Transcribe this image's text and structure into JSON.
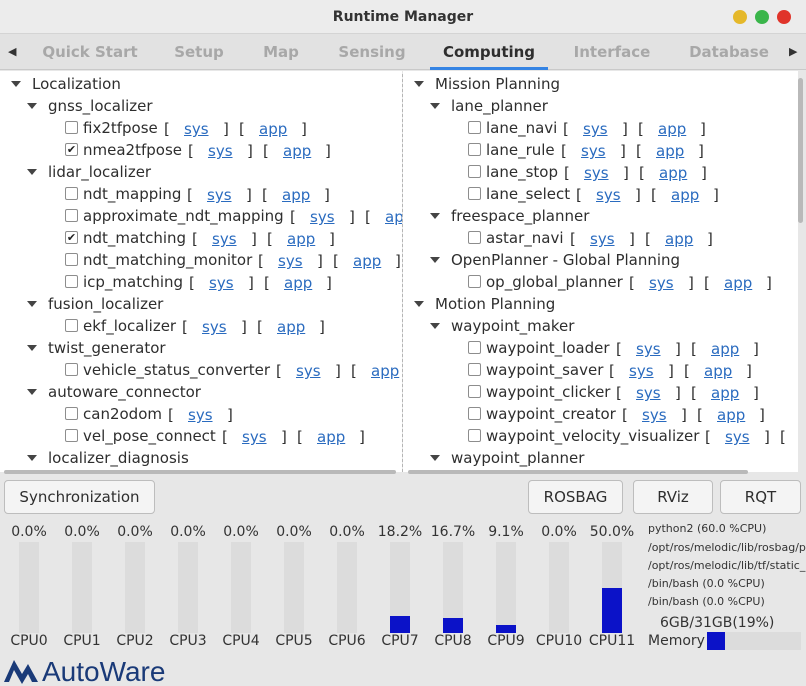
{
  "window": {
    "title": "Runtime Manager",
    "controls": {
      "minimize": "#e5b82a",
      "maximize": "#3ab54a",
      "close": "#e0342a"
    }
  },
  "tabs": [
    "Quick Start",
    "Setup",
    "Map",
    "Sensing",
    "Computing",
    "Interface",
    "Database"
  ],
  "active_tab": "Computing",
  "sys_label": "sys",
  "app_label": "app",
  "bracket_open": "[",
  "bracket_close": "]",
  "left_tree": [
    {
      "label": "Localization",
      "level": 0,
      "type": "group"
    },
    {
      "label": "gnss_localizer",
      "level": 1,
      "type": "group"
    },
    {
      "label": "fix2tfpose",
      "level": 2,
      "type": "node",
      "checked": false,
      "links": [
        "sys",
        "app"
      ]
    },
    {
      "label": "nmea2tfpose",
      "level": 2,
      "type": "node",
      "checked": true,
      "links": [
        "sys",
        "app"
      ]
    },
    {
      "label": "lidar_localizer",
      "level": 1,
      "type": "group"
    },
    {
      "label": "ndt_mapping",
      "level": 2,
      "type": "node",
      "checked": false,
      "links": [
        "sys",
        "app"
      ]
    },
    {
      "label": "approximate_ndt_mapping",
      "level": 2,
      "type": "node",
      "checked": false,
      "links": [
        "sys",
        "app"
      ]
    },
    {
      "label": "ndt_matching",
      "level": 2,
      "type": "node",
      "checked": true,
      "links": [
        "sys",
        "app"
      ]
    },
    {
      "label": "ndt_matching_monitor",
      "level": 2,
      "type": "node",
      "checked": false,
      "links": [
        "sys",
        "app"
      ]
    },
    {
      "label": "icp_matching",
      "level": 2,
      "type": "node",
      "checked": false,
      "links": [
        "sys",
        "app"
      ]
    },
    {
      "label": "fusion_localizer",
      "level": 1,
      "type": "group"
    },
    {
      "label": "ekf_localizer",
      "level": 2,
      "type": "node",
      "checked": false,
      "links": [
        "sys",
        "app"
      ]
    },
    {
      "label": "twist_generator",
      "level": 1,
      "type": "group"
    },
    {
      "label": "vehicle_status_converter",
      "level": 2,
      "type": "node",
      "checked": false,
      "links": [
        "sys",
        "app"
      ]
    },
    {
      "label": "autoware_connector",
      "level": 1,
      "type": "group"
    },
    {
      "label": "can2odom",
      "level": 2,
      "type": "node",
      "checked": false,
      "links": [
        "sys"
      ]
    },
    {
      "label": "vel_pose_connect",
      "level": 2,
      "type": "node",
      "checked": false,
      "links": [
        "sys",
        "app"
      ]
    },
    {
      "label": "localizer_diagnosis",
      "level": 1,
      "type": "group"
    }
  ],
  "right_tree": [
    {
      "label": "Mission Planning",
      "level": 0,
      "type": "group"
    },
    {
      "label": "lane_planner",
      "level": 1,
      "type": "group"
    },
    {
      "label": "lane_navi",
      "level": 2,
      "type": "node",
      "checked": false,
      "links": [
        "sys",
        "app"
      ]
    },
    {
      "label": "lane_rule",
      "level": 2,
      "type": "node",
      "checked": false,
      "links": [
        "sys",
        "app"
      ]
    },
    {
      "label": "lane_stop",
      "level": 2,
      "type": "node",
      "checked": false,
      "links": [
        "sys",
        "app"
      ]
    },
    {
      "label": "lane_select",
      "level": 2,
      "type": "node",
      "checked": false,
      "links": [
        "sys",
        "app"
      ]
    },
    {
      "label": "freespace_planner",
      "level": 1,
      "type": "group"
    },
    {
      "label": "astar_navi",
      "level": 2,
      "type": "node",
      "checked": false,
      "links": [
        "sys",
        "app"
      ]
    },
    {
      "label": "OpenPlanner - Global Planning",
      "level": 1,
      "type": "group"
    },
    {
      "label": "op_global_planner",
      "level": 2,
      "type": "node",
      "checked": false,
      "links": [
        "sys",
        "app"
      ]
    },
    {
      "label": "Motion Planning",
      "level": 0,
      "type": "group"
    },
    {
      "label": "waypoint_maker",
      "level": 1,
      "type": "group"
    },
    {
      "label": "waypoint_loader",
      "level": 2,
      "type": "node",
      "checked": false,
      "links": [
        "sys",
        "app"
      ]
    },
    {
      "label": "waypoint_saver",
      "level": 2,
      "type": "node",
      "checked": false,
      "links": [
        "sys",
        "app"
      ]
    },
    {
      "label": "waypoint_clicker",
      "level": 2,
      "type": "node",
      "checked": false,
      "links": [
        "sys",
        "app"
      ]
    },
    {
      "label": "waypoint_creator",
      "level": 2,
      "type": "node",
      "checked": false,
      "links": [
        "sys",
        "app"
      ]
    },
    {
      "label": "waypoint_velocity_visualizer",
      "level": 2,
      "type": "node",
      "checked": false,
      "links": [
        "sys",
        "app"
      ]
    },
    {
      "label": "waypoint_planner",
      "level": 1,
      "type": "group"
    }
  ],
  "buttons": {
    "synchronization": "Synchronization",
    "rosbag": "ROSBAG",
    "rviz": "RViz",
    "rqt": "RQT"
  },
  "cpus": [
    {
      "name": "CPU0",
      "usage_label": "0.0%",
      "usage": 0.0
    },
    {
      "name": "CPU1",
      "usage_label": "0.0%",
      "usage": 0.0
    },
    {
      "name": "CPU2",
      "usage_label": "0.0%",
      "usage": 0.0
    },
    {
      "name": "CPU3",
      "usage_label": "0.0%",
      "usage": 0.0
    },
    {
      "name": "CPU4",
      "usage_label": "0.0%",
      "usage": 0.0
    },
    {
      "name": "CPU5",
      "usage_label": "0.0%",
      "usage": 0.0
    },
    {
      "name": "CPU6",
      "usage_label": "0.0%",
      "usage": 0.0
    },
    {
      "name": "CPU7",
      "usage_label": "18.2%",
      "usage": 18.2
    },
    {
      "name": "CPU8",
      "usage_label": "16.7%",
      "usage": 16.7
    },
    {
      "name": "CPU9",
      "usage_label": "9.1%",
      "usage": 9.1
    },
    {
      "name": "CPU10",
      "usage_label": "0.0%",
      "usage": 0.0
    },
    {
      "name": "CPU11",
      "usage_label": "50.0%",
      "usage": 50.0
    }
  ],
  "bar_color": "#0b12c8",
  "processes": [
    "python2 (60.0 %CPU)",
    "/opt/ros/melodic/lib/rosbag/p",
    "/opt/ros/melodic/lib/tf/static_",
    "/bin/bash (0.0 %CPU)",
    "/bin/bash (0.0 %CPU)"
  ],
  "memory": {
    "text": "6GB/31GB(19%)",
    "label": "Memory",
    "usage": 19
  },
  "logo": {
    "text": "AutoWare",
    "color": "#1a3a78"
  }
}
